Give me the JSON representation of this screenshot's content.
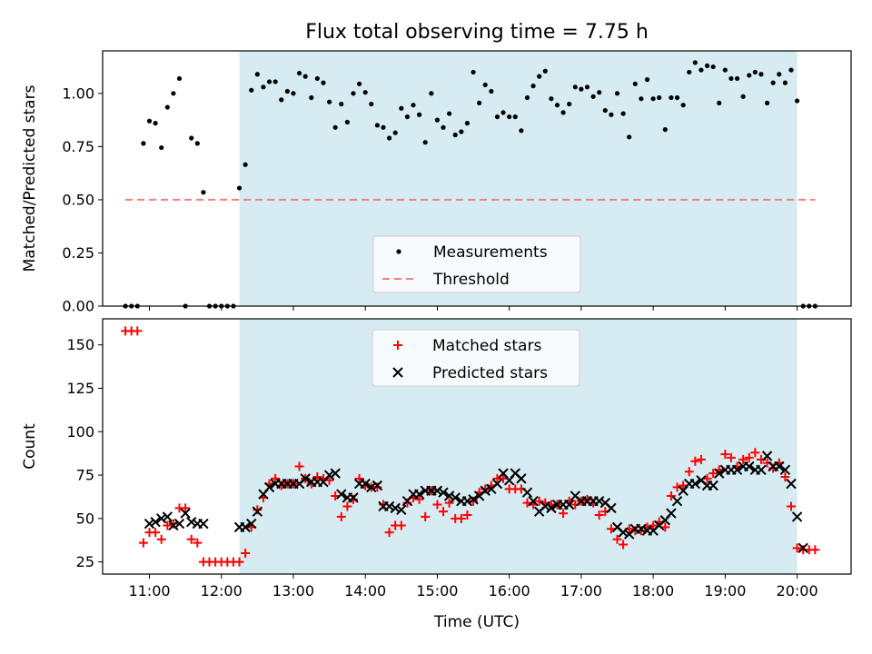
{
  "chart_data": {
    "title": "Flux total observing time = 7.75 h",
    "xlabel": "Time (UTC)",
    "x_ticks": [
      "11:00",
      "12:00",
      "13:00",
      "14:00",
      "15:00",
      "16:00",
      "17:00",
      "18:00",
      "19:00",
      "20:00"
    ],
    "xlim": [
      "10:21",
      "20:45"
    ],
    "shaded_span": {
      "start": "12:15",
      "end": "20:00",
      "color": "#add8e6"
    },
    "panels": [
      {
        "type": "scatter",
        "ylabel": "Matched/Predicted stars",
        "ylim": [
          0,
          1.2
        ],
        "y_ticks": [
          "0.00",
          "0.25",
          "0.50",
          "0.75",
          "1.00"
        ],
        "legend": {
          "position": "lower-center",
          "entries": [
            "Measurements",
            "Threshold"
          ]
        },
        "threshold": {
          "name": "Threshold",
          "value": 0.5,
          "x_start": "10:40",
          "x_end": "20:15",
          "color": "#f08080",
          "style": "dashed"
        },
        "series": [
          {
            "name": "Measurements",
            "color": "#000000",
            "marker": "dot",
            "x": [
              "10:40",
              "10:45",
              "10:50",
              "10:55",
              "11:00",
              "11:05",
              "11:10",
              "11:15",
              "11:20",
              "11:25",
              "11:30",
              "11:35",
              "11:40",
              "11:45",
              "11:50",
              "11:55",
              "12:00",
              "12:05",
              "12:10",
              "12:15",
              "12:20",
              "12:25",
              "12:30",
              "12:35",
              "12:40",
              "12:45",
              "12:50",
              "12:55",
              "13:00",
              "13:05",
              "13:10",
              "13:15",
              "13:20",
              "13:25",
              "13:30",
              "13:35",
              "13:40",
              "13:45",
              "13:50",
              "13:55",
              "14:00",
              "14:05",
              "14:10",
              "14:15",
              "14:20",
              "14:25",
              "14:30",
              "14:35",
              "14:40",
              "14:45",
              "14:50",
              "14:55",
              "15:00",
              "15:05",
              "15:10",
              "15:15",
              "15:20",
              "15:25",
              "15:30",
              "15:35",
              "15:40",
              "15:45",
              "15:50",
              "15:55",
              "16:00",
              "16:05",
              "16:10",
              "16:15",
              "16:20",
              "16:25",
              "16:30",
              "16:35",
              "16:40",
              "16:45",
              "16:50",
              "16:55",
              "17:00",
              "17:05",
              "17:10",
              "17:15",
              "17:20",
              "17:25",
              "17:30",
              "17:35",
              "17:40",
              "17:45",
              "17:50",
              "17:55",
              "18:00",
              "18:05",
              "18:10",
              "18:15",
              "18:20",
              "18:25",
              "18:30",
              "18:35",
              "18:40",
              "18:45",
              "18:50",
              "18:55",
              "19:00",
              "19:05",
              "19:10",
              "19:15",
              "19:20",
              "19:25",
              "19:30",
              "19:35",
              "19:40",
              "19:45",
              "19:50",
              "19:55",
              "20:00",
              "20:05",
              "20:10",
              "20:15"
            ],
            "y": [
              0,
              0,
              0,
              0.765,
              0.87,
              0.86,
              0.745,
              0.935,
              1.0,
              1.07,
              0,
              0.79,
              0.765,
              0.535,
              0,
              0,
              0,
              0,
              0,
              0.555,
              0.665,
              1.015,
              1.09,
              1.03,
              1.055,
              1.055,
              0.97,
              1.01,
              1.0,
              1.095,
              1.08,
              0.98,
              1.07,
              1.05,
              0.96,
              0.84,
              0.95,
              0.865,
              1.0,
              1.045,
              1.005,
              0.95,
              0.85,
              0.84,
              0.79,
              0.815,
              0.93,
              0.89,
              0.945,
              0.9,
              0.77,
              1.0,
              0.875,
              0.84,
              0.905,
              0.805,
              0.82,
              0.86,
              1.1,
              0.955,
              1.04,
              1.01,
              0.89,
              0.91,
              0.89,
              0.89,
              0.825,
              0.98,
              1.035,
              1.08,
              1.105,
              0.975,
              0.945,
              0.91,
              0.95,
              1.03,
              1.02,
              1.03,
              0.985,
              1.005,
              0.92,
              0.9,
              1.0,
              0.905,
              0.795,
              1.045,
              0.975,
              1.065,
              0.975,
              0.98,
              0.83,
              0.98,
              0.98,
              0.945,
              1.1,
              1.145,
              1.11,
              1.13,
              1.125,
              0.955,
              1.11,
              1.07,
              1.07,
              0.985,
              1.085,
              1.1,
              1.09,
              0.955,
              1.05,
              1.09,
              1.05,
              1.11,
              0.965,
              0,
              0,
              0
            ]
          }
        ]
      },
      {
        "type": "scatter",
        "ylabel": "Count",
        "ylim": [
          18,
          165
        ],
        "y_ticks": [
          "25",
          "50",
          "75",
          "100",
          "125",
          "150"
        ],
        "legend": {
          "position": "upper-center",
          "entries": [
            "Matched stars",
            "Predicted stars"
          ]
        },
        "series": [
          {
            "name": "Matched stars",
            "color": "#ff0000",
            "marker": "plus",
            "x": [
              "10:40",
              "10:45",
              "10:50",
              "10:55",
              "11:00",
              "11:05",
              "11:10",
              "11:15",
              "11:20",
              "11:25",
              "11:30",
              "11:35",
              "11:40",
              "11:45",
              "11:50",
              "11:55",
              "12:00",
              "12:05",
              "12:10",
              "12:15",
              "12:20",
              "12:25",
              "12:30",
              "12:35",
              "12:40",
              "12:45",
              "12:50",
              "12:55",
              "13:00",
              "13:05",
              "13:10",
              "13:15",
              "13:20",
              "13:25",
              "13:30",
              "13:35",
              "13:40",
              "13:45",
              "13:50",
              "13:55",
              "14:00",
              "14:05",
              "14:10",
              "14:15",
              "14:20",
              "14:25",
              "14:30",
              "14:35",
              "14:40",
              "14:45",
              "14:50",
              "14:55",
              "15:00",
              "15:05",
              "15:10",
              "15:15",
              "15:20",
              "15:25",
              "15:30",
              "15:35",
              "15:40",
              "15:45",
              "15:50",
              "15:55",
              "16:00",
              "16:05",
              "16:10",
              "16:15",
              "16:20",
              "16:25",
              "16:30",
              "16:35",
              "16:40",
              "16:45",
              "16:50",
              "16:55",
              "17:00",
              "17:05",
              "17:10",
              "17:15",
              "17:20",
              "17:25",
              "17:30",
              "17:35",
              "17:40",
              "17:45",
              "17:50",
              "17:55",
              "18:00",
              "18:05",
              "18:10",
              "18:15",
              "18:20",
              "18:25",
              "18:30",
              "18:35",
              "18:40",
              "18:45",
              "18:50",
              "18:55",
              "19:00",
              "19:05",
              "19:10",
              "19:15",
              "19:20",
              "19:25",
              "19:30",
              "19:35",
              "19:40",
              "19:45",
              "19:50",
              "19:55",
              "20:00",
              "20:05",
              "20:10",
              "20:15"
            ],
            "y": [
              158,
              158,
              158,
              36,
              42,
              42,
              38,
              46,
              47,
              56,
              56,
              38,
              36,
              25,
              25,
              25,
              25,
              25,
              25,
              25,
              30,
              45,
              55,
              62,
              70,
              73,
              69,
              70,
              70,
              80,
              73,
              70,
              74,
              73,
              72,
              63,
              51,
              57,
              61,
              73,
              69,
              68,
              68,
              58,
              42,
              46,
              46,
              59,
              62,
              61,
              51,
              66,
              58,
              54,
              59,
              50,
              50,
              52,
              60,
              65,
              67,
              69,
              73,
              73,
              67,
              67,
              67,
              59,
              58,
              60,
              59,
              58,
              58,
              53,
              60,
              58,
              60,
              61,
              59,
              52,
              54,
              44,
              38,
              35,
              44,
              43,
              43,
              45,
              46,
              48,
              45,
              63,
              68,
              69,
              77,
              83,
              84,
              73,
              76,
              78,
              87,
              85,
              80,
              84,
              85,
              88,
              84,
              82,
              79,
              82,
              74,
              57,
              33,
              32,
              32,
              32
            ]
          },
          {
            "name": "Predicted stars",
            "color": "#000000",
            "marker": "x",
            "x": [
              "11:00",
              "11:05",
              "11:10",
              "11:15",
              "11:20",
              "11:25",
              "11:30",
              "11:35",
              "11:40",
              "11:45",
              "12:15",
              "12:20",
              "12:25",
              "12:30",
              "12:35",
              "12:40",
              "12:45",
              "12:50",
              "12:55",
              "13:00",
              "13:05",
              "13:10",
              "13:15",
              "13:20",
              "13:25",
              "13:30",
              "13:35",
              "13:40",
              "13:45",
              "13:50",
              "13:55",
              "14:00",
              "14:05",
              "14:10",
              "14:15",
              "14:20",
              "14:25",
              "14:30",
              "14:35",
              "14:40",
              "14:45",
              "14:50",
              "14:55",
              "15:00",
              "15:05",
              "15:10",
              "15:15",
              "15:20",
              "15:25",
              "15:30",
              "15:35",
              "15:40",
              "15:45",
              "15:50",
              "15:55",
              "16:00",
              "16:05",
              "16:10",
              "16:15",
              "16:20",
              "16:25",
              "16:30",
              "16:35",
              "16:40",
              "16:45",
              "16:50",
              "16:55",
              "17:00",
              "17:05",
              "17:10",
              "17:15",
              "17:20",
              "17:25",
              "17:30",
              "17:35",
              "17:40",
              "17:45",
              "17:50",
              "17:55",
              "18:00",
              "18:05",
              "18:10",
              "18:15",
              "18:20",
              "18:25",
              "18:30",
              "18:35",
              "18:40",
              "18:45",
              "18:50",
              "18:55",
              "19:00",
              "19:05",
              "19:10",
              "19:15",
              "19:20",
              "19:25",
              "19:30",
              "19:35",
              "19:40",
              "19:45",
              "19:50",
              "19:55",
              "20:00",
              "20:05"
            ],
            "y": [
              47,
              48,
              50,
              51,
              46,
              47,
              53,
              48,
              47,
              47,
              45,
              45,
              47,
              54,
              64,
              68,
              70,
              70,
              70,
              70,
              70,
              73,
              71,
              71,
              71,
              75,
              76,
              64,
              62,
              62,
              70,
              70,
              68,
              69,
              57,
              57,
              56,
              55,
              60,
              64,
              64,
              66,
              66,
              66,
              65,
              63,
              62,
              60,
              60,
              61,
              63,
              66,
              67,
              70,
              76,
              72,
              76,
              73,
              65,
              60,
              54,
              57,
              56,
              58,
              58,
              58,
              63,
              60,
              60,
              60,
              60,
              59,
              56,
              45,
              42,
              41,
              44,
              44,
              43,
              43,
              46,
              49,
              53,
              60,
              66,
              70,
              70,
              72,
              69,
              69,
              76,
              78,
              78,
              78,
              80,
              80,
              78,
              78,
              86,
              80,
              80,
              78,
              70,
              51,
              33
            ]
          }
        ]
      }
    ]
  }
}
